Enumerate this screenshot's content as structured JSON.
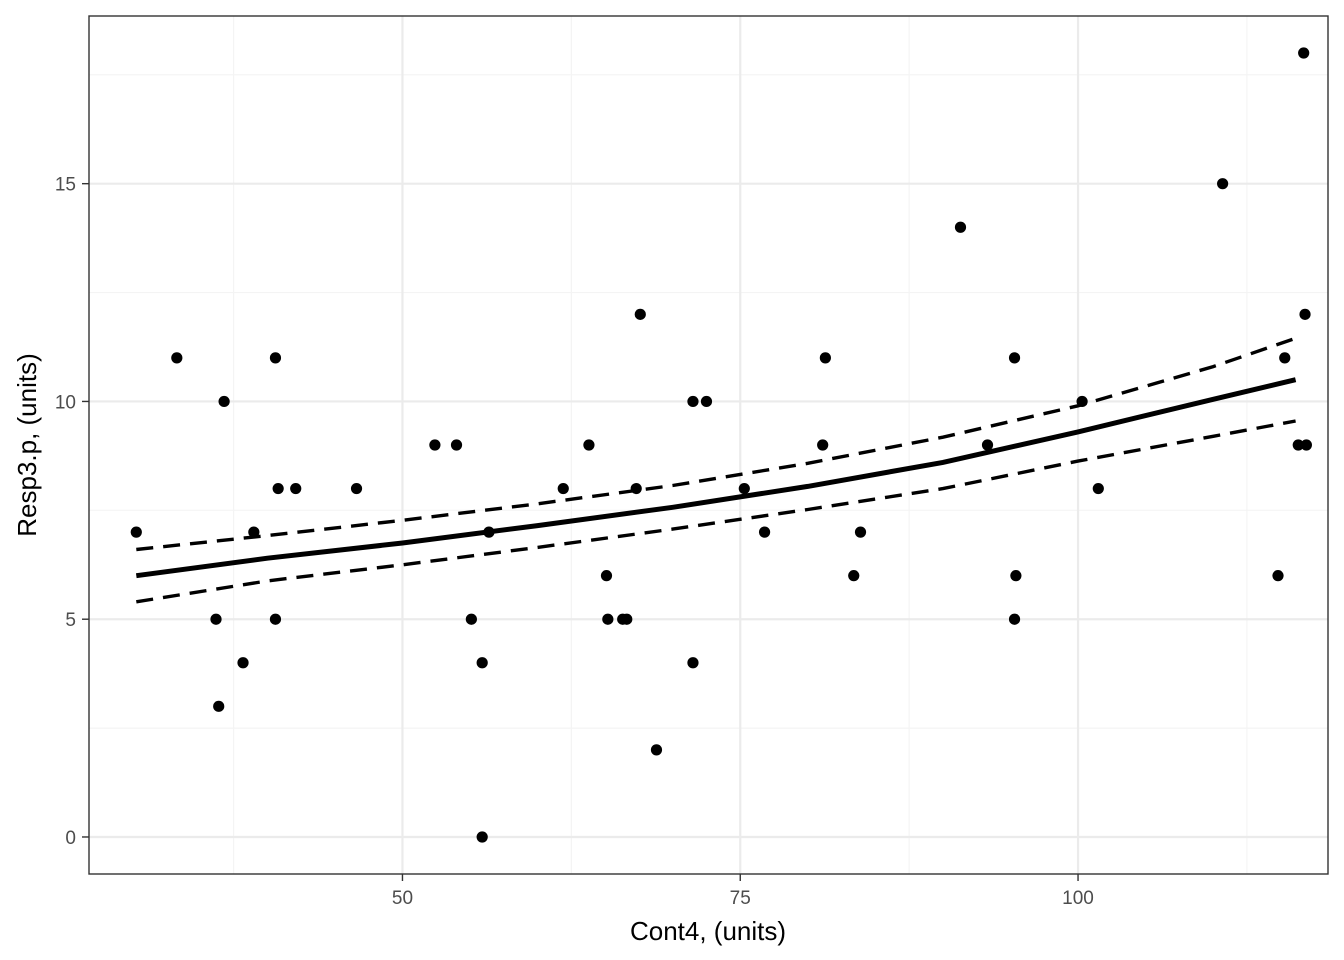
{
  "chart_data": {
    "type": "scatter",
    "title": "",
    "xlabel": "Cont4, (units)",
    "ylabel": "Resp3.p, (units)",
    "xlim": [
      26.8,
      118.5
    ],
    "ylim": [
      -0.85,
      18.85
    ],
    "x_ticks": [
      50,
      75,
      100
    ],
    "x_tick_labels": [
      "50",
      "75",
      "100"
    ],
    "x_minor_ticks": [
      37.5,
      62.5,
      87.5,
      112.5
    ],
    "y_ticks": [
      0,
      5,
      10,
      15
    ],
    "y_tick_labels": [
      "0",
      "5",
      "10",
      "15"
    ],
    "y_minor_ticks": [
      2.5,
      7.5,
      12.5,
      17.5
    ],
    "grid": true,
    "colors": {
      "points": "#000000",
      "fit_line": "#000000",
      "grid_major": "#ebebeb",
      "grid_minor": "#f4f4f4",
      "panel_border": "#333333",
      "background": "#ffffff"
    },
    "points": [
      {
        "x": 30.3,
        "y": 7
      },
      {
        "x": 33.3,
        "y": 11
      },
      {
        "x": 36.2,
        "y": 5
      },
      {
        "x": 36.4,
        "y": 3
      },
      {
        "x": 36.8,
        "y": 10
      },
      {
        "x": 38.2,
        "y": 4
      },
      {
        "x": 39.0,
        "y": 7
      },
      {
        "x": 40.6,
        "y": 11
      },
      {
        "x": 40.8,
        "y": 8
      },
      {
        "x": 40.6,
        "y": 5
      },
      {
        "x": 42.1,
        "y": 8
      },
      {
        "x": 46.6,
        "y": 8
      },
      {
        "x": 52.4,
        "y": 9
      },
      {
        "x": 54.0,
        "y": 9
      },
      {
        "x": 55.1,
        "y": 5
      },
      {
        "x": 55.9,
        "y": 4
      },
      {
        "x": 55.9,
        "y": 0
      },
      {
        "x": 56.4,
        "y": 7
      },
      {
        "x": 61.9,
        "y": 8
      },
      {
        "x": 63.8,
        "y": 9
      },
      {
        "x": 65.1,
        "y": 6
      },
      {
        "x": 65.2,
        "y": 5
      },
      {
        "x": 66.3,
        "y": 5
      },
      {
        "x": 66.6,
        "y": 5
      },
      {
        "x": 67.3,
        "y": 8
      },
      {
        "x": 67.6,
        "y": 12
      },
      {
        "x": 68.8,
        "y": 2
      },
      {
        "x": 71.5,
        "y": 10
      },
      {
        "x": 71.5,
        "y": 4
      },
      {
        "x": 72.5,
        "y": 10
      },
      {
        "x": 75.3,
        "y": 8
      },
      {
        "x": 76.8,
        "y": 7
      },
      {
        "x": 81.1,
        "y": 9
      },
      {
        "x": 81.3,
        "y": 11
      },
      {
        "x": 83.4,
        "y": 6
      },
      {
        "x": 83.9,
        "y": 7
      },
      {
        "x": 91.3,
        "y": 14
      },
      {
        "x": 93.3,
        "y": 9
      },
      {
        "x": 95.3,
        "y": 11
      },
      {
        "x": 95.3,
        "y": 5
      },
      {
        "x": 95.4,
        "y": 6
      },
      {
        "x": 100.3,
        "y": 10
      },
      {
        "x": 101.5,
        "y": 8
      },
      {
        "x": 110.7,
        "y": 15
      },
      {
        "x": 114.8,
        "y": 6
      },
      {
        "x": 115.3,
        "y": 11
      },
      {
        "x": 116.3,
        "y": 9
      },
      {
        "x": 116.7,
        "y": 18
      },
      {
        "x": 116.8,
        "y": 12
      },
      {
        "x": 116.9,
        "y": 9
      }
    ],
    "series": [
      {
        "name": "fit",
        "style": "solid",
        "x": [
          30.3,
          40,
          50,
          60,
          70,
          80,
          90,
          100,
          110,
          116.1
        ],
        "y": [
          6.0,
          6.4,
          6.75,
          7.15,
          7.57,
          8.05,
          8.6,
          9.3,
          10.05,
          10.5
        ]
      },
      {
        "name": "upper",
        "style": "dashed",
        "x": [
          30.3,
          40,
          50,
          60,
          70,
          80,
          90,
          100,
          110,
          116.1
        ],
        "y": [
          6.6,
          6.92,
          7.27,
          7.65,
          8.07,
          8.58,
          9.18,
          9.9,
          10.8,
          11.45
        ]
      },
      {
        "name": "lower",
        "style": "dashed",
        "x": [
          30.3,
          40,
          50,
          60,
          70,
          80,
          90,
          100,
          110,
          116.1
        ],
        "y": [
          5.4,
          5.88,
          6.25,
          6.65,
          7.07,
          7.52,
          8.0,
          8.63,
          9.2,
          9.55
        ]
      }
    ]
  }
}
